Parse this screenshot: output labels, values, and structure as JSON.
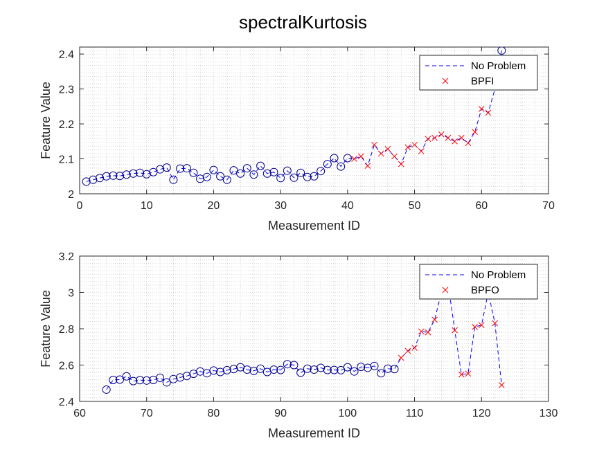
{
  "figure": {
    "title": "spectralKurtosis"
  },
  "chart_data": [
    {
      "type": "line",
      "xlabel": "Measurement ID",
      "ylabel": "Feature Value",
      "xlim": [
        0,
        70
      ],
      "ylim": [
        2,
        2.42
      ],
      "xticks": [
        "0",
        "10",
        "20",
        "30",
        "40",
        "50",
        "60",
        "70"
      ],
      "yticks": [
        "2",
        "2.1",
        "2.2",
        "2.3",
        "2.4"
      ],
      "grid": "minor dotted",
      "legend_position": "top-right",
      "colors": {
        "line": "#0000ff",
        "circle": "#00008b",
        "cross": "#ff0000"
      },
      "legend": [
        {
          "label": "No Problem",
          "style": "dashed-line"
        },
        {
          "label": "BPFI",
          "style": "cross-marker"
        }
      ],
      "line": {
        "x": [
          1,
          2,
          3,
          4,
          5,
          6,
          7,
          8,
          9,
          10,
          11,
          12,
          13,
          14,
          15,
          16,
          17,
          18,
          19,
          20,
          21,
          22,
          23,
          24,
          25,
          26,
          27,
          28,
          29,
          30,
          31,
          32,
          33,
          34,
          35,
          36,
          37,
          38,
          39,
          40,
          41,
          42,
          43,
          44,
          45,
          46,
          47,
          48,
          49,
          50,
          51,
          52,
          53,
          54,
          55,
          56,
          57,
          58,
          59,
          60,
          61,
          62,
          63
        ],
        "y": [
          2.035,
          2.04,
          2.045,
          2.05,
          2.052,
          2.051,
          2.055,
          2.058,
          2.06,
          2.056,
          2.062,
          2.07,
          2.075,
          2.04,
          2.072,
          2.073,
          2.06,
          2.043,
          2.048,
          2.068,
          2.05,
          2.04,
          2.067,
          2.058,
          2.073,
          2.055,
          2.08,
          2.058,
          2.062,
          2.045,
          2.066,
          2.046,
          2.06,
          2.048,
          2.05,
          2.065,
          2.085,
          2.102,
          2.078,
          2.102,
          2.1,
          2.107,
          2.08,
          2.14,
          2.115,
          2.128,
          2.107,
          2.085,
          2.133,
          2.14,
          2.122,
          2.157,
          2.16,
          2.17,
          2.16,
          2.15,
          2.16,
          2.145,
          2.177,
          2.243,
          2.232,
          2.3,
          2.41
        ]
      },
      "markers": [
        {
          "name": "No Problem",
          "marker": "circle",
          "x": [
            1,
            2,
            3,
            4,
            5,
            6,
            7,
            8,
            9,
            10,
            11,
            12,
            13,
            14,
            15,
            16,
            17,
            18,
            19,
            20,
            21,
            22,
            23,
            24,
            25,
            26,
            27,
            28,
            29,
            30,
            31,
            32,
            33,
            34,
            35,
            36,
            37,
            38,
            39,
            40,
            63
          ],
          "y": [
            2.035,
            2.04,
            2.045,
            2.05,
            2.052,
            2.051,
            2.055,
            2.058,
            2.06,
            2.056,
            2.062,
            2.07,
            2.075,
            2.04,
            2.072,
            2.073,
            2.06,
            2.043,
            2.048,
            2.068,
            2.05,
            2.04,
            2.067,
            2.058,
            2.073,
            2.055,
            2.08,
            2.058,
            2.062,
            2.045,
            2.066,
            2.046,
            2.06,
            2.048,
            2.05,
            2.065,
            2.085,
            2.102,
            2.078,
            2.102,
            2.41
          ]
        },
        {
          "name": "BPFI",
          "marker": "cross",
          "x": [
            41,
            42,
            43,
            44,
            45,
            46,
            47,
            48,
            49,
            50,
            51,
            52,
            53,
            54,
            55,
            56,
            57,
            58,
            59,
            60,
            61
          ],
          "y": [
            2.1,
            2.107,
            2.08,
            2.14,
            2.115,
            2.128,
            2.107,
            2.085,
            2.133,
            2.14,
            2.122,
            2.157,
            2.16,
            2.17,
            2.16,
            2.15,
            2.16,
            2.145,
            2.177,
            2.243,
            2.232
          ]
        }
      ]
    },
    {
      "type": "line",
      "xlabel": "Measurement ID",
      "ylabel": "Feature Value",
      "xlim": [
        60,
        130
      ],
      "ylim": [
        2.4,
        3.2
      ],
      "xticks": [
        "60",
        "70",
        "80",
        "90",
        "100",
        "110",
        "120",
        "130"
      ],
      "yticks": [
        "2.4",
        "2.6",
        "2.8",
        "3",
        "3.2"
      ],
      "grid": "minor dotted",
      "legend_position": "top-right",
      "colors": {
        "line": "#0000ff",
        "circle": "#00008b",
        "cross": "#ff0000"
      },
      "legend": [
        {
          "label": "No Problem",
          "style": "dashed-line"
        },
        {
          "label": "BPFO",
          "style": "cross-marker"
        }
      ],
      "line": {
        "x": [
          64,
          65,
          66,
          67,
          68,
          69,
          70,
          71,
          72,
          73,
          74,
          75,
          76,
          77,
          78,
          79,
          80,
          81,
          82,
          83,
          84,
          85,
          86,
          87,
          88,
          89,
          90,
          91,
          92,
          93,
          94,
          95,
          96,
          97,
          98,
          99,
          100,
          101,
          102,
          103,
          104,
          105,
          106,
          107,
          108,
          109,
          110,
          111,
          112,
          113,
          114,
          115,
          116,
          117,
          118,
          119,
          120,
          121,
          122,
          123
        ],
        "y": [
          2.465,
          2.518,
          2.52,
          2.538,
          2.512,
          2.517,
          2.515,
          2.518,
          2.53,
          2.505,
          2.523,
          2.532,
          2.54,
          2.552,
          2.565,
          2.555,
          2.57,
          2.562,
          2.572,
          2.578,
          2.588,
          2.575,
          2.568,
          2.58,
          2.562,
          2.575,
          2.573,
          2.605,
          2.6,
          2.558,
          2.58,
          2.575,
          2.585,
          2.573,
          2.573,
          2.572,
          2.588,
          2.565,
          2.59,
          2.585,
          2.595,
          2.555,
          2.58,
          2.578,
          2.64,
          2.678,
          2.695,
          2.785,
          2.78,
          2.85,
          3.0,
          3.05,
          2.792,
          2.548,
          2.553,
          2.81,
          2.82,
          3.0,
          2.83,
          2.49
        ]
      },
      "markers": [
        {
          "name": "No Problem",
          "marker": "circle",
          "x": [
            64,
            65,
            66,
            67,
            68,
            69,
            70,
            71,
            72,
            73,
            74,
            75,
            76,
            77,
            78,
            79,
            80,
            81,
            82,
            83,
            84,
            85,
            86,
            87,
            88,
            89,
            90,
            91,
            92,
            93,
            94,
            95,
            96,
            97,
            98,
            99,
            100,
            101,
            102,
            103,
            104,
            105,
            106,
            107
          ],
          "y": [
            2.465,
            2.518,
            2.52,
            2.538,
            2.512,
            2.517,
            2.515,
            2.518,
            2.53,
            2.505,
            2.523,
            2.532,
            2.54,
            2.552,
            2.565,
            2.555,
            2.57,
            2.562,
            2.572,
            2.578,
            2.588,
            2.575,
            2.568,
            2.58,
            2.562,
            2.575,
            2.573,
            2.605,
            2.6,
            2.558,
            2.58,
            2.575,
            2.585,
            2.573,
            2.573,
            2.572,
            2.588,
            2.565,
            2.59,
            2.585,
            2.595,
            2.555,
            2.58,
            2.578
          ]
        },
        {
          "name": "BPFO",
          "marker": "cross",
          "x": [
            108,
            109,
            110,
            111,
            112,
            113,
            116,
            117,
            118,
            119,
            120,
            122,
            123
          ],
          "y": [
            2.64,
            2.678,
            2.695,
            2.785,
            2.78,
            2.85,
            2.792,
            2.548,
            2.553,
            2.81,
            2.82,
            2.83,
            2.49
          ]
        }
      ]
    }
  ]
}
